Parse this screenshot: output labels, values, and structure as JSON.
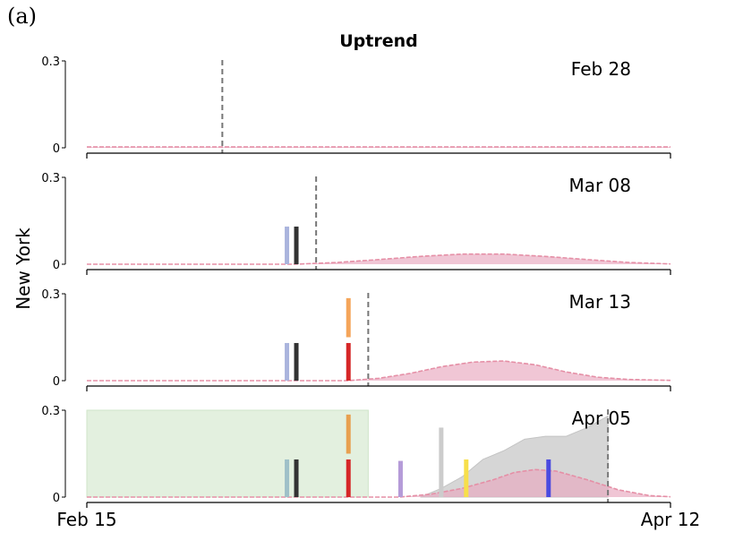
{
  "panel_label": "(a)",
  "chart_data": {
    "type": "area",
    "title": "Uptrend",
    "ylabel": "New York",
    "xlabel": "",
    "x_range": [
      "Feb 15",
      "Apr 12"
    ],
    "x_tick_labels": [
      "Feb 15",
      "Apr 12"
    ],
    "ylim": [
      0,
      0.3
    ],
    "y_tick_labels": [
      "0",
      "0.3"
    ],
    "grid": false,
    "panels": [
      {
        "date": "Feb 28",
        "cutoff_day": 13,
        "forecast": {
          "days": [
            0,
            56
          ],
          "values": [
            0.003,
            0.003
          ]
        },
        "markers": []
      },
      {
        "date": "Mar 08",
        "cutoff_day": 22,
        "forecast": {
          "days": [
            0,
            20,
            24,
            28,
            32,
            36,
            40,
            44,
            48,
            52,
            56
          ],
          "values": [
            0.0,
            0.0,
            0.006,
            0.016,
            0.027,
            0.035,
            0.035,
            0.027,
            0.016,
            0.006,
            0.001
          ]
        },
        "markers": [
          {
            "day": 19.2,
            "value": 0.13,
            "color": "#aab4dd"
          },
          {
            "day": 20.1,
            "value": 0.13,
            "color": "#333333"
          }
        ]
      },
      {
        "date": "Mar 13",
        "cutoff_day": 27,
        "forecast": {
          "days": [
            0,
            25,
            28,
            31,
            34,
            37,
            40,
            43,
            46,
            49,
            52,
            56
          ],
          "values": [
            0.0,
            0.0,
            0.008,
            0.025,
            0.048,
            0.064,
            0.068,
            0.055,
            0.03,
            0.012,
            0.004,
            0.001
          ]
        },
        "markers": [
          {
            "day": 19.2,
            "value": 0.13,
            "color": "#aab4dd"
          },
          {
            "day": 20.1,
            "value": 0.13,
            "color": "#333333"
          },
          {
            "day": 25.1,
            "value": 0.13,
            "color": "#d62728"
          },
          {
            "day": 25.1,
            "value": 0.135,
            "base": 0.15,
            "color": "#f5a55a"
          }
        ]
      },
      {
        "date": "Apr 05",
        "cutoff_day": 50,
        "shaded_window": {
          "start_day": 0,
          "end_day": 27,
          "top": 0.3
        },
        "forecast": {
          "days": [
            0,
            30,
            33,
            36,
            39,
            41,
            43,
            45,
            48,
            51,
            54,
            56
          ],
          "values": [
            0.0,
            0.0,
            0.01,
            0.03,
            0.06,
            0.085,
            0.095,
            0.09,
            0.06,
            0.025,
            0.005,
            0.001
          ]
        },
        "observed": {
          "days": [
            32,
            34,
            36,
            38,
            40,
            42,
            44,
            46,
            48,
            50
          ],
          "values": [
            0.0,
            0.03,
            0.07,
            0.13,
            0.16,
            0.2,
            0.21,
            0.21,
            0.24,
            0.28
          ]
        },
        "markers": [
          {
            "day": 19.2,
            "value": 0.13,
            "color": "#9fc0c8"
          },
          {
            "day": 20.1,
            "value": 0.13,
            "color": "#333333"
          },
          {
            "day": 25.1,
            "value": 0.13,
            "color": "#d62728"
          },
          {
            "day": 25.1,
            "value": 0.135,
            "base": 0.15,
            "color": "#e8a050"
          },
          {
            "day": 30.1,
            "value": 0.125,
            "color": "#b59bd8"
          },
          {
            "day": 34.0,
            "value": 0.24,
            "color": "#cccccc"
          },
          {
            "day": 36.4,
            "value": 0.13,
            "color": "#f7df4a"
          },
          {
            "day": 44.3,
            "value": 0.13,
            "color": "#4a4ae0"
          }
        ]
      }
    ],
    "colors": {
      "forecast_fill": "#e8a8be",
      "forecast_line": "#e58fa6",
      "observed_fill": "#d6d6d6",
      "shade_fill": "#e3f0df",
      "shade_edge": "#cfe4c9",
      "cutoff_line": "#777777"
    }
  }
}
